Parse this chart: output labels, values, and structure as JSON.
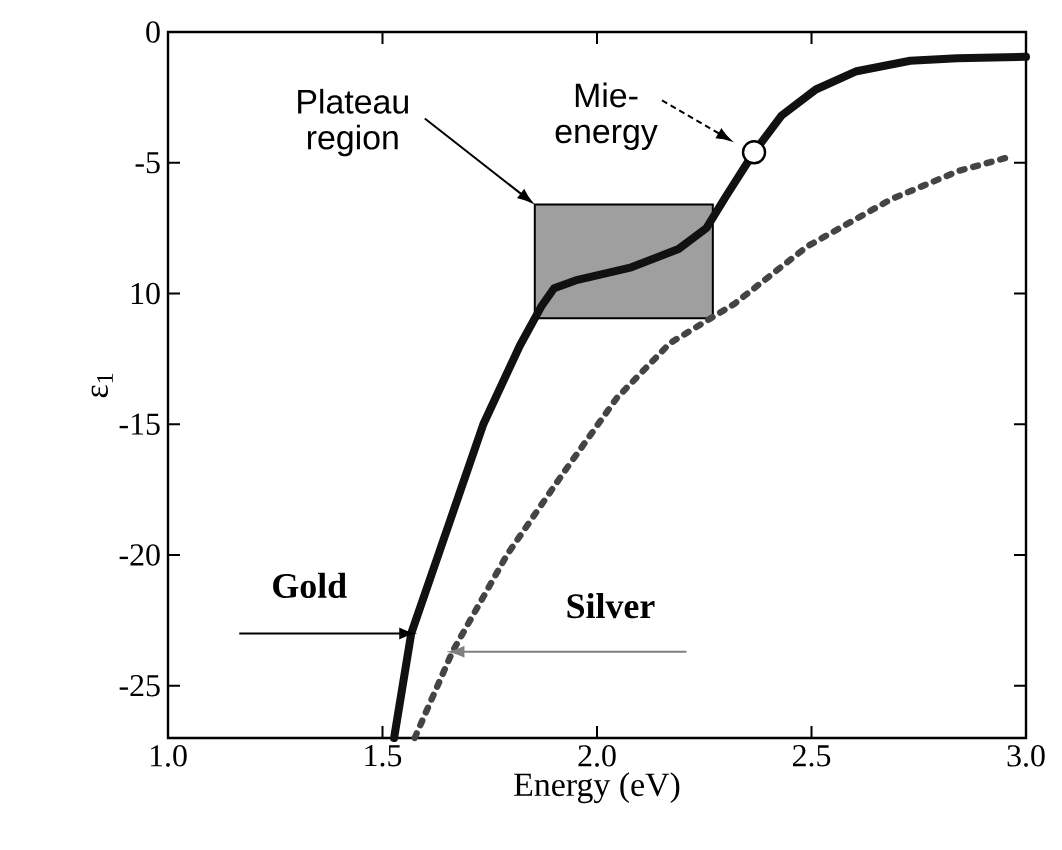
{
  "chart_data": {
    "type": "line",
    "xlabel": "Energy (eV)",
    "ylabel": "ε$_{1}$",
    "xlim": [
      1.0,
      3.0
    ],
    "ylim": [
      -27,
      0
    ],
    "xticks": [
      {
        "value": 1.0,
        "label": "1.0"
      },
      {
        "value": 1.5,
        "label": "1.5"
      },
      {
        "value": 2.0,
        "label": "2.0"
      },
      {
        "value": 2.5,
        "label": "2.5"
      },
      {
        "value": 3.0,
        "label": "3.0"
      }
    ],
    "yticks": [
      0,
      -5,
      {
        "value": -10,
        "label": "10"
      },
      -15,
      -20,
      -25
    ],
    "grid": false,
    "bands": [
      {
        "axis": "x",
        "from": 1.855,
        "to": 2.27,
        "label": "Plateau region",
        "color": "#9f9f9f"
      }
    ],
    "series": [
      {
        "name": "Gold",
        "color": "#111111",
        "line_style": "solid",
        "x": [
          1.527,
          1.567,
          1.63,
          1.735,
          1.82,
          1.87,
          1.9,
          1.95,
          2.08,
          2.19,
          2.255,
          2.3,
          2.366,
          2.43,
          2.51,
          2.605,
          2.73,
          2.84,
          3.0
        ],
        "values": [
          -27,
          -23,
          -20,
          -15,
          -12,
          -10.5,
          -9.8,
          -9.5,
          -9,
          -8.3,
          -7.5,
          -6.3,
          -4.6,
          -3.2,
          -2.2,
          -1.5,
          -1.1,
          -1.0,
          -0.95
        ]
      },
      {
        "name": "Silver",
        "color": "#444444",
        "line_style": "dotted",
        "x": [
          1.575,
          1.663,
          1.79,
          1.92,
          2.046,
          2.17,
          2.32,
          2.49,
          2.685,
          2.845,
          2.957
        ],
        "values": [
          -27,
          -23.7,
          -20,
          -16.9,
          -14,
          -11.9,
          -10.4,
          -8.2,
          -6.4,
          -5.3,
          -4.8
        ]
      },
      {
        "type": "scatter",
        "marker": "circle",
        "color": "#ffffff",
        "x": [
          2.366
        ],
        "values": [
          -4.6
        ]
      }
    ],
    "annotations": [
      "Mie-energy"
    ]
  }
}
